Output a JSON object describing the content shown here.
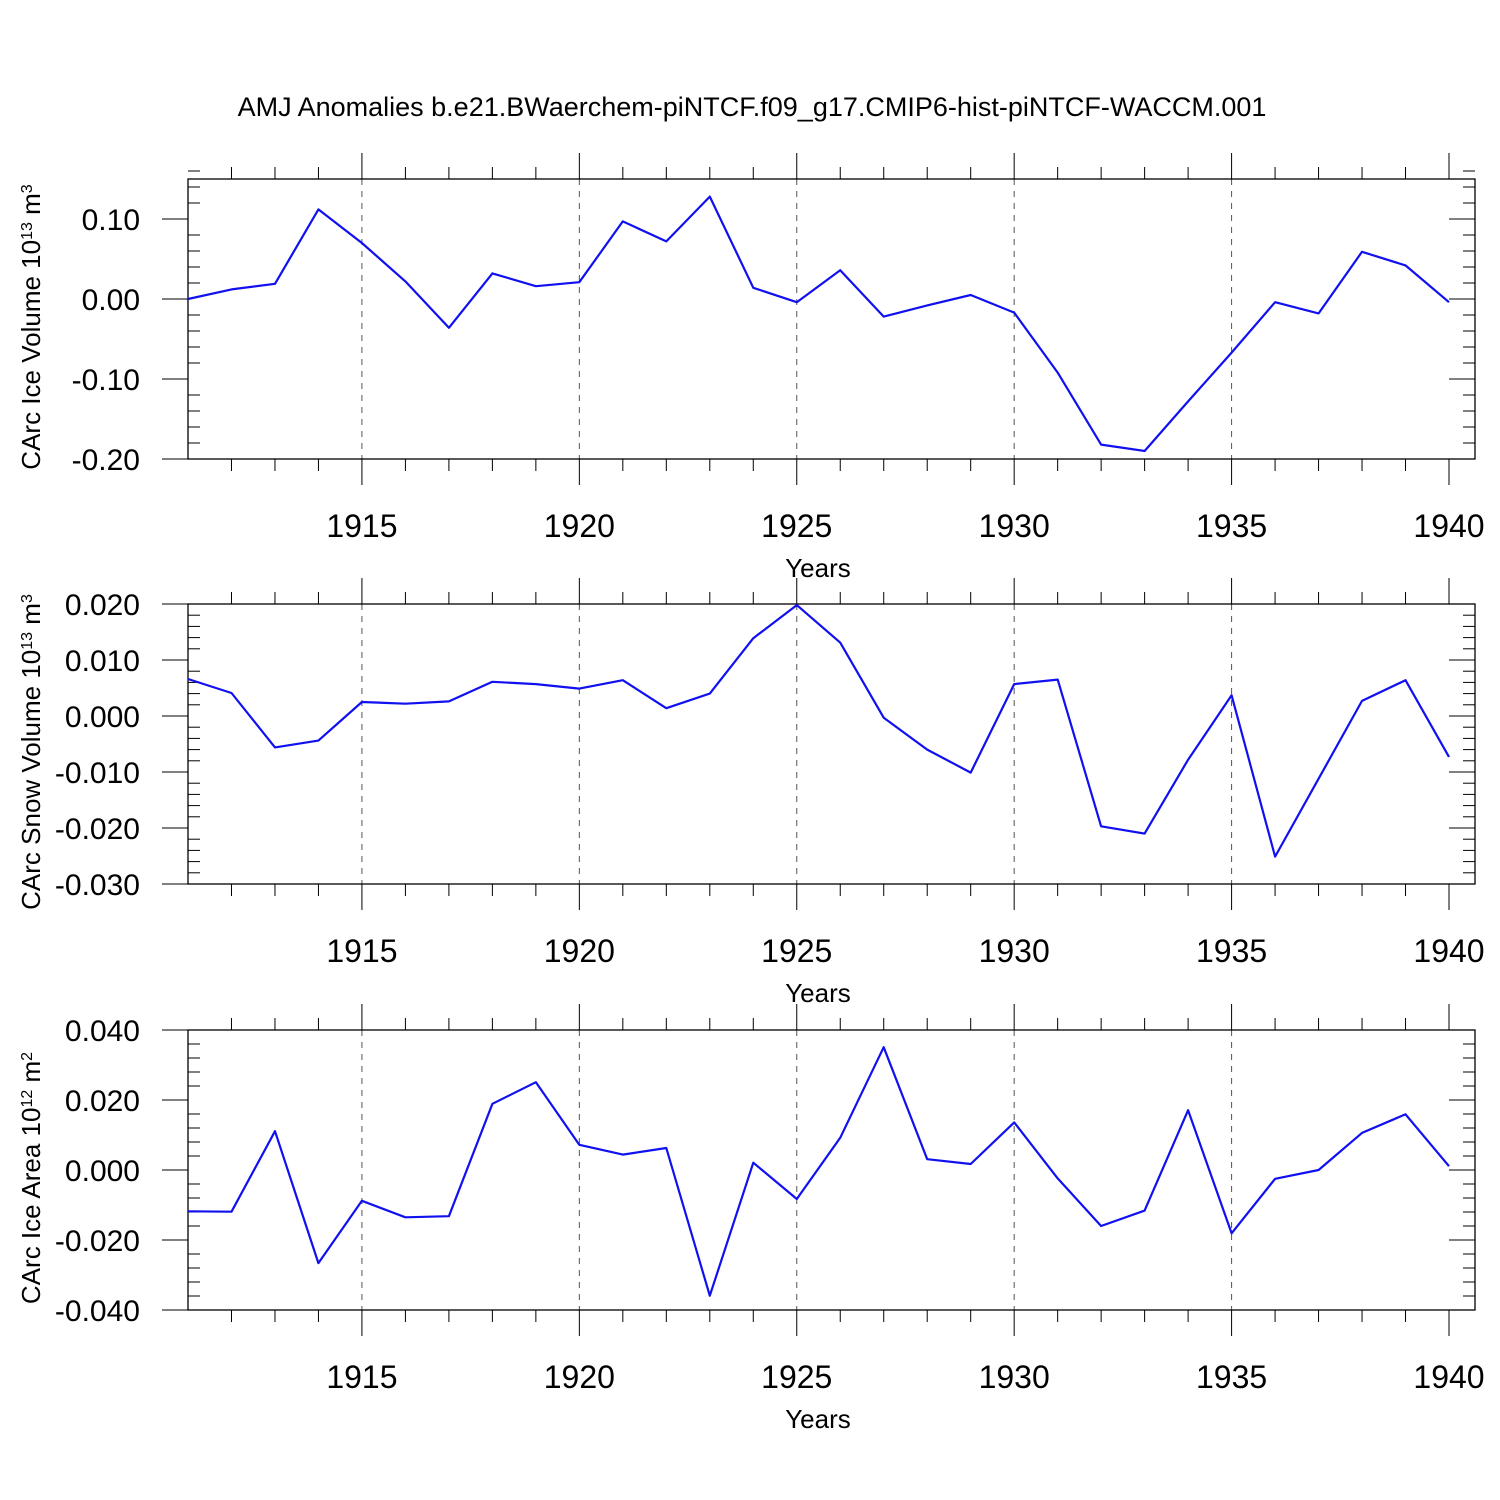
{
  "title": "AMJ Anomalies b.e21.BWaerchem-piNTCF.f09_g17.CMIP6-hist-piNTCF-WACCM.001",
  "colors": {
    "line": "#1010f0",
    "axis": "#000000",
    "gridline": "#555555",
    "background": "#ffffff"
  },
  "chart_data": [
    {
      "type": "line",
      "title": "",
      "xlabel": "Years",
      "ylabel_prefix": "CArc Ice Volume 10",
      "ylabel_exp": "13",
      "ylabel_unit": " m",
      "ylabel_unit_exp": "3",
      "xlim": [
        1911,
        1940
      ],
      "ylim": [
        -0.2,
        0.15
      ],
      "xticks": [
        1915,
        1920,
        1925,
        1930,
        1935,
        1940
      ],
      "xtick_labels": [
        "1915",
        "1920",
        "1925",
        "1930",
        "1935",
        "1940"
      ],
      "yticks": [
        0.1,
        0.0,
        -0.1,
        -0.2
      ],
      "ytick_labels": [
        "0.10",
        "0.00",
        "-0.10",
        "-0.20"
      ],
      "grid": "dashed vertical at major x ticks",
      "series": [
        {
          "x": [
            1911,
            1912,
            1913,
            1914,
            1915,
            1916,
            1917,
            1918,
            1919,
            1920,
            1921,
            1922,
            1923,
            1924,
            1925,
            1926,
            1927,
            1928,
            1929,
            1930,
            1931,
            1932,
            1933,
            1934,
            1935,
            1936,
            1937,
            1938,
            1939,
            1940
          ],
          "values": [
            0.0,
            0.012,
            0.019,
            0.112,
            0.07,
            0.022,
            -0.036,
            0.032,
            0.016,
            0.021,
            0.097,
            0.072,
            0.128,
            0.014,
            -0.004,
            0.036,
            -0.022,
            -0.008,
            0.005,
            -0.017,
            -0.092,
            -0.182,
            -0.19,
            -0.128,
            -0.067,
            -0.004,
            -0.018,
            0.059,
            0.042,
            -0.004
          ]
        }
      ]
    },
    {
      "type": "line",
      "title": "",
      "xlabel": "Years",
      "ylabel_prefix": "CArc Snow Volume 10",
      "ylabel_exp": "13",
      "ylabel_unit": " m",
      "ylabel_unit_exp": "3",
      "xlim": [
        1911,
        1940
      ],
      "ylim": [
        -0.03,
        0.02
      ],
      "xticks": [
        1915,
        1920,
        1925,
        1930,
        1935,
        1940
      ],
      "xtick_labels": [
        "1915",
        "1920",
        "1925",
        "1930",
        "1935",
        "1940"
      ],
      "yticks": [
        0.02,
        0.01,
        0.0,
        -0.01,
        -0.02,
        -0.03
      ],
      "ytick_labels": [
        "0.020",
        "0.010",
        "0.000",
        "-0.010",
        "-0.020",
        "-0.030"
      ],
      "grid": "dashed vertical at major x ticks",
      "series": [
        {
          "x": [
            1911,
            1912,
            1913,
            1914,
            1915,
            1916,
            1917,
            1918,
            1919,
            1920,
            1921,
            1922,
            1923,
            1924,
            1925,
            1926,
            1927,
            1928,
            1929,
            1930,
            1931,
            1932,
            1933,
            1934,
            1935,
            1936,
            1937,
            1938,
            1939,
            1940
          ],
          "values": [
            0.0066,
            0.0041,
            -0.0056,
            -0.0044,
            0.0025,
            0.0022,
            0.0026,
            0.0061,
            0.0057,
            0.0049,
            0.0064,
            0.0014,
            0.004,
            0.0139,
            0.0198,
            0.0131,
            -0.0003,
            -0.006,
            -0.0101,
            0.0057,
            0.0065,
            -0.0197,
            -0.021,
            -0.0078,
            0.0037,
            -0.0251,
            -0.0112,
            0.0027,
            0.0064,
            -0.0073
          ]
        }
      ]
    },
    {
      "type": "line",
      "title": "",
      "xlabel": "Years",
      "ylabel_prefix": "CArc Ice Area 10",
      "ylabel_exp": "12",
      "ylabel_unit": " m",
      "ylabel_unit_exp": "2",
      "xlim": [
        1911,
        1940
      ],
      "ylim": [
        -0.04,
        0.04
      ],
      "xticks": [
        1915,
        1920,
        1925,
        1930,
        1935,
        1940
      ],
      "xtick_labels": [
        "1915",
        "1920",
        "1925",
        "1930",
        "1935",
        "1940"
      ],
      "yticks": [
        0.04,
        0.02,
        0.0,
        -0.02,
        -0.04
      ],
      "ytick_labels": [
        "0.040",
        "0.020",
        "0.000",
        "-0.020",
        "-0.040"
      ],
      "grid": "dashed vertical at major x ticks",
      "series": [
        {
          "x": [
            1911,
            1912,
            1913,
            1914,
            1915,
            1916,
            1917,
            1918,
            1919,
            1920,
            1921,
            1922,
            1923,
            1924,
            1925,
            1926,
            1927,
            1928,
            1929,
            1930,
            1931,
            1932,
            1933,
            1934,
            1935,
            1936,
            1937,
            1938,
            1939,
            1940
          ],
          "values": [
            -0.0118,
            -0.0119,
            0.0111,
            -0.0266,
            -0.0088,
            -0.0135,
            -0.0132,
            0.0189,
            0.0251,
            0.0072,
            0.0044,
            0.0063,
            -0.0359,
            0.0021,
            -0.0083,
            0.0092,
            0.0351,
            0.0031,
            0.0017,
            0.0136,
            -0.0024,
            -0.016,
            -0.0116,
            0.0171,
            -0.0181,
            -0.0025,
            0.0,
            0.0106,
            0.0159,
            0.0011
          ]
        }
      ]
    }
  ]
}
